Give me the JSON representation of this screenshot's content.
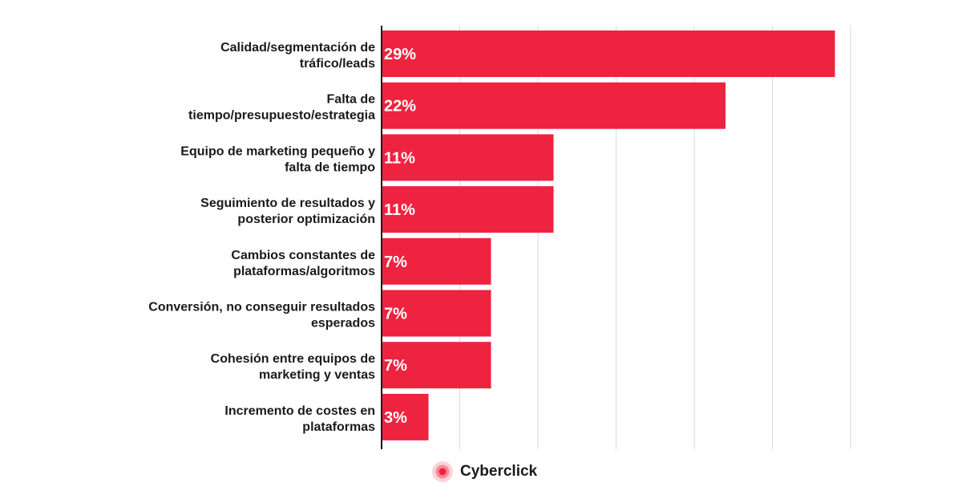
{
  "chart_data": {
    "type": "bar",
    "orientation": "horizontal",
    "categories": [
      [
        "Calidad/segmentación de",
        "tráfico/leads"
      ],
      [
        "Falta de",
        "tiempo/presupuesto/estrategia"
      ],
      [
        "Equipo de marketing pequeño y",
        "falta de tiempo"
      ],
      [
        "Seguimiento de resultados y",
        "posterior optimización"
      ],
      [
        "Cambios constantes de",
        "plataformas/algoritmos"
      ],
      [
        "Conversión, no conseguir resultados",
        "esperados"
      ],
      [
        "Cohesión entre equipos de",
        "marketing y ventas"
      ],
      [
        "Incremento de costes en",
        "plataformas"
      ]
    ],
    "values": [
      29,
      22,
      11,
      11,
      7,
      7,
      7,
      3
    ],
    "value_labels": [
      "29%",
      "22%",
      "11%",
      "11%",
      "7%",
      "7%",
      "7%",
      "3%"
    ],
    "xlim": [
      0,
      30
    ],
    "grid": true,
    "bar_color": "#ee2340",
    "gridline_color": "#d9d9d9"
  },
  "brand": {
    "name": "Cyberclick",
    "icon": "cyberclick-logo-icon",
    "accent": "#ee2340"
  }
}
